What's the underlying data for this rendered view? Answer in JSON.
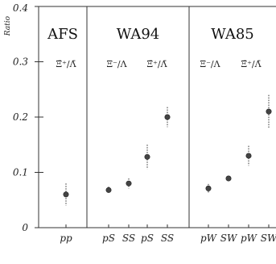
{
  "chart_data": {
    "type": "scatter",
    "ylabel": "Ratio",
    "ylim": [
      0,
      0.4
    ],
    "yticks": [
      0,
      0.1,
      0.2,
      0.3,
      0.4
    ],
    "ytick_labels": [
      "0",
      "0.1",
      "0.2",
      "0.3",
      "0.4"
    ],
    "grid": false,
    "panels": [
      {
        "title": "AFS",
        "ratio_labels": [
          "Ξ̄⁺/Λ̄"
        ],
        "categories": [
          "pp"
        ],
        "points": [
          {
            "category": "pp",
            "ratio": "Ξ̄⁺/Λ̄",
            "value": 0.06,
            "err": 0.02
          }
        ]
      },
      {
        "title": "WA94",
        "ratio_labels": [
          "Ξ⁻/Λ",
          "Ξ̄⁺/Λ̄"
        ],
        "categories": [
          "pS",
          "SS",
          "pS",
          "SS"
        ],
        "points": [
          {
            "category": "pS",
            "ratio": "Ξ⁻/Λ",
            "value": 0.068,
            "err": 0.006
          },
          {
            "category": "SS",
            "ratio": "Ξ⁻/Λ",
            "value": 0.08,
            "err": 0.009
          },
          {
            "category": "pS",
            "ratio": "Ξ̄⁺/Λ̄",
            "value": 0.128,
            "err": 0.022
          },
          {
            "category": "SS",
            "ratio": "Ξ̄⁺/Λ̄",
            "value": 0.2,
            "err": 0.018
          }
        ]
      },
      {
        "title": "WA85",
        "ratio_labels": [
          "Ξ⁻/Λ",
          "Ξ̄⁺/Λ̄"
        ],
        "categories": [
          "pW",
          "SW",
          "pW",
          "SW"
        ],
        "points": [
          {
            "category": "pW",
            "ratio": "Ξ⁻/Λ",
            "value": 0.071,
            "err": 0.008
          },
          {
            "category": "SW",
            "ratio": "Ξ⁻/Λ",
            "value": 0.089,
            "err": 0.004
          },
          {
            "category": "pW",
            "ratio": "Ξ̄⁺/Λ̄",
            "value": 0.13,
            "err": 0.018
          },
          {
            "category": "SW",
            "ratio": "Ξ̄⁺/Λ̄",
            "value": 0.21,
            "err": 0.03
          }
        ]
      }
    ]
  }
}
